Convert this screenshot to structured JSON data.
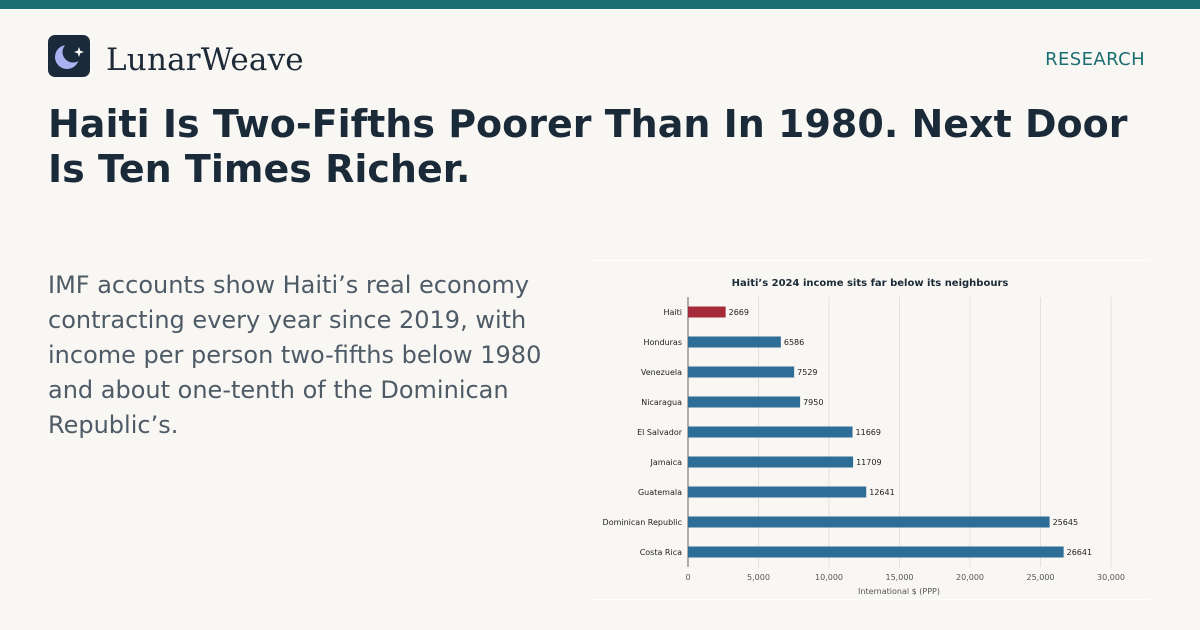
{
  "brand": {
    "name": "LunarWeave",
    "section": "RESEARCH",
    "logo_icon": "moon-star-icon"
  },
  "headline": "Haiti Is Two-Fifths Poorer Than In 1980. Next Door Is Ten Times Richer.",
  "deck": "IMF accounts show Haiti’s real economy contracting every year since 2019, with income per person two-fifths below 1980 and about one-tenth of the Dominican Republic’s.",
  "colors": {
    "accent": "#1a6e72",
    "highlight": "#a52a3a",
    "bar": "#2e6e96",
    "logo_bg": "#1b2a3a",
    "logo_moon": "#aab2f2"
  },
  "chart_data": {
    "type": "bar",
    "orientation": "horizontal",
    "title": "Haiti’s 2024 income sits far below its neighbours",
    "xlabel": "International $ (PPP)",
    "ylabel": "",
    "xlim": [
      0,
      30000
    ],
    "x_ticks": [
      "0",
      "5,000",
      "10,000",
      "15,000",
      "20,000",
      "25,000",
      "30,000"
    ],
    "x_tick_values": [
      0,
      5000,
      10000,
      15000,
      20000,
      25000,
      30000
    ],
    "grid": true,
    "highlight_category": "Haiti",
    "categories": [
      "Haiti",
      "Honduras",
      "Venezuela",
      "Nicaragua",
      "El Salvador",
      "Jamaica",
      "Guatemala",
      "Dominican Republic",
      "Costa Rica"
    ],
    "values": [
      2669,
      6586,
      7529,
      7950,
      11669,
      11709,
      12641,
      25645,
      26641
    ]
  }
}
